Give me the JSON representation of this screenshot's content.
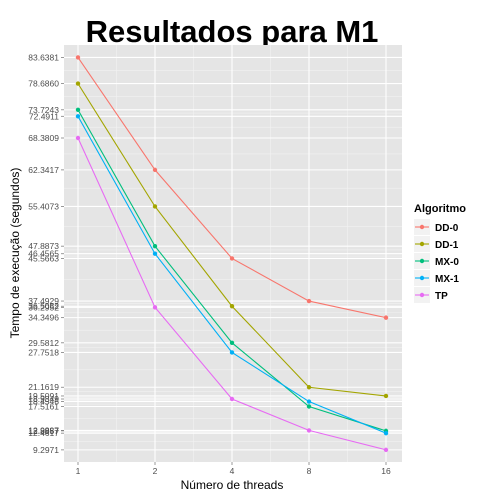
{
  "chart_data": {
    "type": "line",
    "title": "Resultados para M1",
    "xlabel": "Número de threads",
    "ylabel": "Tempo de execução (segundos)",
    "x": [
      "1",
      "2",
      "4",
      "8",
      "16"
    ],
    "y_ticks": [
      "83.6381",
      "78.6860",
      "73.7243",
      "72.4911",
      "68.3809",
      "62.3417",
      "55.4073",
      "47.8873",
      "46.4565",
      "45.5663",
      "37.4929",
      "36.5082",
      "36.2952",
      "34.3496",
      "29.5812",
      "27.7518",
      "21.1619",
      "19.5091",
      "18.9349",
      "18.4546",
      "17.5161",
      "12.9887",
      "12.8957",
      "12.4617",
      "9.2971"
    ],
    "ylim": [
      7.0,
      86.0
    ],
    "grid": true,
    "legend": {
      "title": "Algoritmo",
      "position": "right"
    },
    "series": [
      {
        "name": "DD-0",
        "color": "#f8766d",
        "values": [
          83.6381,
          62.3417,
          45.5663,
          37.4929,
          34.3496
        ]
      },
      {
        "name": "DD-1",
        "color": "#a3a500",
        "values": [
          78.686,
          55.4073,
          36.5082,
          21.1619,
          19.5091
        ]
      },
      {
        "name": "MX-0",
        "color": "#00bf7d",
        "values": [
          73.7243,
          47.8873,
          29.5812,
          17.5161,
          12.8957
        ]
      },
      {
        "name": "MX-1",
        "color": "#00b0f6",
        "values": [
          72.4911,
          46.4565,
          27.7518,
          18.4546,
          12.4617
        ]
      },
      {
        "name": "TP",
        "color": "#e76bf3",
        "values": [
          68.3809,
          36.2952,
          18.9349,
          12.9887,
          9.2971
        ]
      }
    ]
  }
}
